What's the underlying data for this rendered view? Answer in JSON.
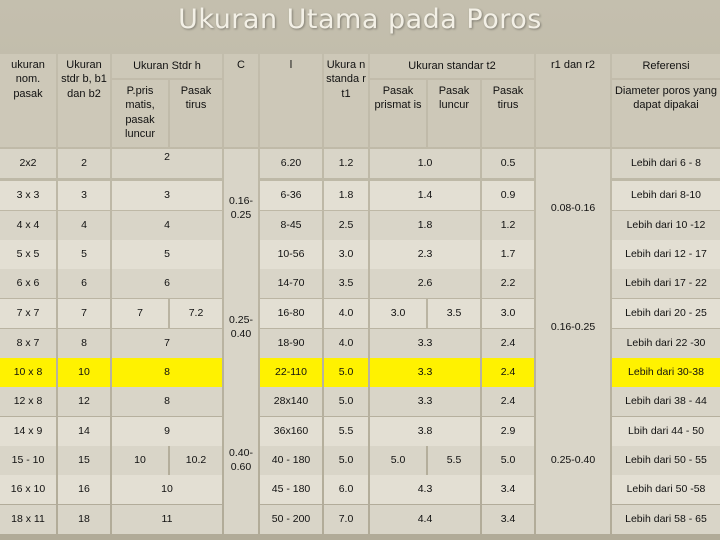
{
  "title": "Ukuran Utama pada Poros",
  "headers": {
    "nom": "ukuran nom. pasak",
    "stdr_b": "Ukuran stdr b, b1 dan b2",
    "stdr_h": "Ukuran Stdr h",
    "c": "C",
    "l": "l",
    "t1": "Ukura n standa r t1",
    "std_t2": "Ukuran standar t2",
    "r": "r1 dan r2",
    "ref": "Referensi",
    "h_prismatis": "P.pris matis, pasak luncur",
    "h_tirus": "Pasak tirus",
    "t2_prismatis": "Pasak prismat is",
    "t2_luncur": "Pasak luncur",
    "t2_tirus": "Pasak tirus",
    "diameter": "Diameter poros yang dapat dipakai"
  },
  "rows": [
    {
      "nom": "2x2",
      "b": "2",
      "h": "2",
      "l": "6.20",
      "t1": "1.2",
      "t2": "1.0",
      "tirus": "0.5",
      "ref": "Lebih dari  6 - 8"
    },
    {
      "nom": "3 x 3",
      "b": "3",
      "h": "3",
      "l": "6-36",
      "t1": "1.8",
      "t2": "1.4",
      "tirus": "0.9",
      "ref": "Lebih dari  8-10"
    },
    {
      "nom": "4 x 4",
      "b": "4",
      "h": "4",
      "l": "8-45",
      "t1": "2.5",
      "t2": "1.8",
      "tirus": "1.2",
      "ref": "Lebih dari  10 -12"
    },
    {
      "nom": "5 x 5",
      "b": "5",
      "h": "5",
      "l": "10-56",
      "t1": "3.0",
      "t2": "2.3",
      "tirus": "1.7",
      "ref": "Lebih dari 12 - 17"
    },
    {
      "nom": "6 x 6",
      "b": "6",
      "h": "6",
      "l": "14-70",
      "t1": "3.5",
      "t2": "2.6",
      "tirus": "2.2",
      "ref": "Lebih dari 17 - 22"
    },
    {
      "nom": "7 x 7",
      "b": "7",
      "h1": "7",
      "h2": "7.2",
      "l": "16-80",
      "t1": "4.0",
      "t2a": "3.0",
      "t2b": "3.5",
      "tirus": "3.0",
      "ref": "Lebih dari 20 - 25"
    },
    {
      "nom": "8 x 7",
      "b": "8",
      "h": "7",
      "l": "18-90",
      "t1": "4.0",
      "t2": "3.3",
      "tirus": "2.4",
      "ref": "Lebih dari 22 -30"
    },
    {
      "nom": "10 x 8",
      "b": "10",
      "h": "8",
      "l": "22-110",
      "t1": "5.0",
      "t2": "3.3",
      "tirus": "2.4",
      "ref": "Lebih dari 30-38"
    },
    {
      "nom": "12 x 8",
      "b": "12",
      "h": "8",
      "l": "28x140",
      "t1": "5.0",
      "t2": "3.3",
      "tirus": "2.4",
      "ref": "Lebih dari 38 - 44"
    },
    {
      "nom": "14 x 9",
      "b": "14",
      "h": "9",
      "l": "36x160",
      "t1": "5.5",
      "t2": "3.8",
      "tirus": "2.9",
      "ref": "Lbih dari 44 - 50"
    },
    {
      "nom": "15 - 10",
      "b": "15",
      "h1": "10",
      "h2": "10.2",
      "l": "40 - 180",
      "t1": "5.0",
      "t2a": "5.0",
      "t2b": "5.5",
      "tirus": "5.0",
      "ref": "Lebih dari 50 - 55"
    },
    {
      "nom": "16 x 10",
      "b": "16",
      "h": "10",
      "l": "45 - 180",
      "t1": "6.0",
      "t2": "4.3",
      "tirus": "3.4",
      "ref": "Lebih dari 50 -58"
    },
    {
      "nom": "18 x 11",
      "b": "18",
      "h": "11",
      "l": "50 - 200",
      "t1": "7.0",
      "t2": "4.4",
      "tirus": "3.4",
      "ref": "Lebih dari 58 - 65"
    }
  ],
  "c_values": [
    "0.16-0.25",
    "0.25-0.40",
    "0.40-0.60"
  ],
  "r_values": [
    "0.08-0.16",
    "0.16-0.25",
    "0.25-0.40"
  ],
  "highlight_row_index": 7,
  "colors": {
    "highlight": "#fff200",
    "cell": "#d9d5c8",
    "background": "#bdb7a5"
  }
}
